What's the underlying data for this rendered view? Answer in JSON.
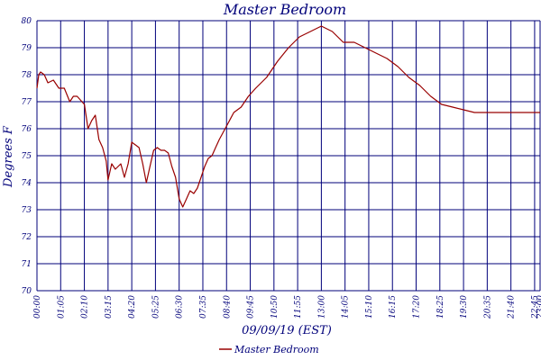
{
  "chart_data": {
    "type": "line",
    "title": "Master Bedroom",
    "xlabel": "09/09/19 (EST)",
    "ylabel": "Degrees F",
    "ylim": [
      70,
      80
    ],
    "y_ticks": [
      "70",
      "71",
      "72",
      "73",
      "74",
      "75",
      "76",
      "77",
      "78",
      "79",
      "80"
    ],
    "x_ticks": [
      "00:00",
      "01:05",
      "02:10",
      "03:15",
      "04:20",
      "05:25",
      "06:30",
      "07:35",
      "08:40",
      "09:45",
      "10:50",
      "11:55",
      "13:00",
      "14:05",
      "15:10",
      "16:15",
      "17:20",
      "18:25",
      "19:30",
      "20:35",
      "21:40",
      "22:45",
      "23:00"
    ],
    "grid": true,
    "legend_position": "bottom-center",
    "colors": {
      "axis": "#00007a",
      "line": "#990000",
      "background": "#ffffff"
    },
    "series": [
      {
        "name": "Master Bedroom",
        "x_minutes": [
          0,
          5,
          10,
          20,
          30,
          45,
          60,
          75,
          90,
          100,
          110,
          130,
          140,
          150,
          160,
          170,
          180,
          190,
          195,
          205,
          215,
          230,
          240,
          250,
          260,
          270,
          280,
          290,
          300,
          310,
          320,
          330,
          340,
          350,
          360,
          370,
          380,
          390,
          400,
          410,
          420,
          430,
          440,
          450,
          460,
          470,
          480,
          490,
          500,
          520,
          540,
          560,
          580,
          600,
          630,
          660,
          690,
          720,
          750,
          780,
          810,
          840,
          870,
          900,
          930,
          960,
          990,
          1020,
          1050,
          1080,
          1110,
          1140,
          1170,
          1200,
          1230,
          1260,
          1290,
          1320,
          1350,
          1365,
          1380
        ],
        "values": [
          77.5,
          78.0,
          78.1,
          78.0,
          77.7,
          77.8,
          77.5,
          77.5,
          77.0,
          77.2,
          77.2,
          76.9,
          76.0,
          76.3,
          76.5,
          75.6,
          75.3,
          74.8,
          74.1,
          74.7,
          74.5,
          74.7,
          74.2,
          74.7,
          75.5,
          75.4,
          75.3,
          74.7,
          74.0,
          74.6,
          75.2,
          75.3,
          75.2,
          75.2,
          75.1,
          74.6,
          74.2,
          73.4,
          73.1,
          73.4,
          73.7,
          73.6,
          73.8,
          74.2,
          74.6,
          74.9,
          75.0,
          75.3,
          75.6,
          76.1,
          76.6,
          76.8,
          77.2,
          77.5,
          77.9,
          78.5,
          79.0,
          79.4,
          79.6,
          79.8,
          79.6,
          79.2,
          79.2,
          79.0,
          78.8,
          78.6,
          78.3,
          77.9,
          77.6,
          77.2,
          76.9,
          76.8,
          76.7,
          76.6,
          76.6,
          76.6,
          76.6,
          76.6,
          76.6,
          76.6,
          76.6
        ]
      }
    ]
  }
}
